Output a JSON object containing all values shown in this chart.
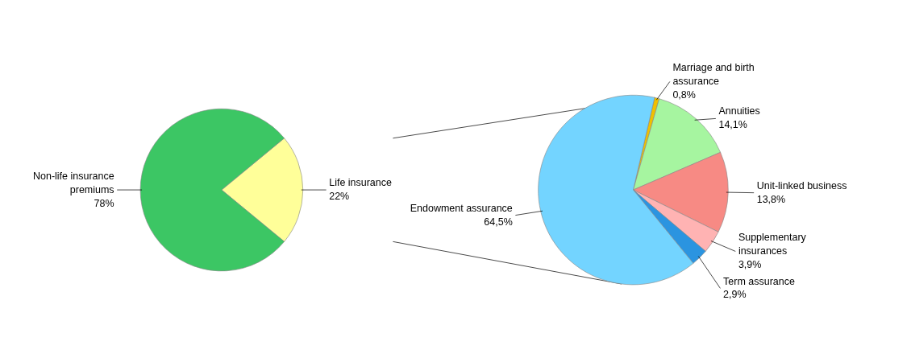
{
  "chart_data": [
    {
      "type": "pie",
      "categories": [
        "Life insurance",
        "Non-life insurance premiums"
      ],
      "values": [
        22,
        78
      ],
      "colors": [
        "#ffff99",
        "#3cc664"
      ],
      "value_labels": [
        "22%",
        "78%"
      ]
    },
    {
      "type": "pie",
      "categories": [
        "Marriage and birth assurance",
        "Annuities",
        "Unit-linked business",
        "Supplementary insurances",
        "Term assurance",
        "Endowment assurance"
      ],
      "values": [
        0.8,
        14.1,
        13.8,
        3.9,
        2.9,
        64.5
      ],
      "colors": [
        "#f0c000",
        "#a6f5a0",
        "#f78a84",
        "#ffb3b3",
        "#2b94e0",
        "#73d4ff"
      ],
      "value_labels": [
        "0,8%",
        "14,1%",
        "13,8%",
        "3,9%",
        "2,9%",
        "64,5%"
      ]
    }
  ]
}
